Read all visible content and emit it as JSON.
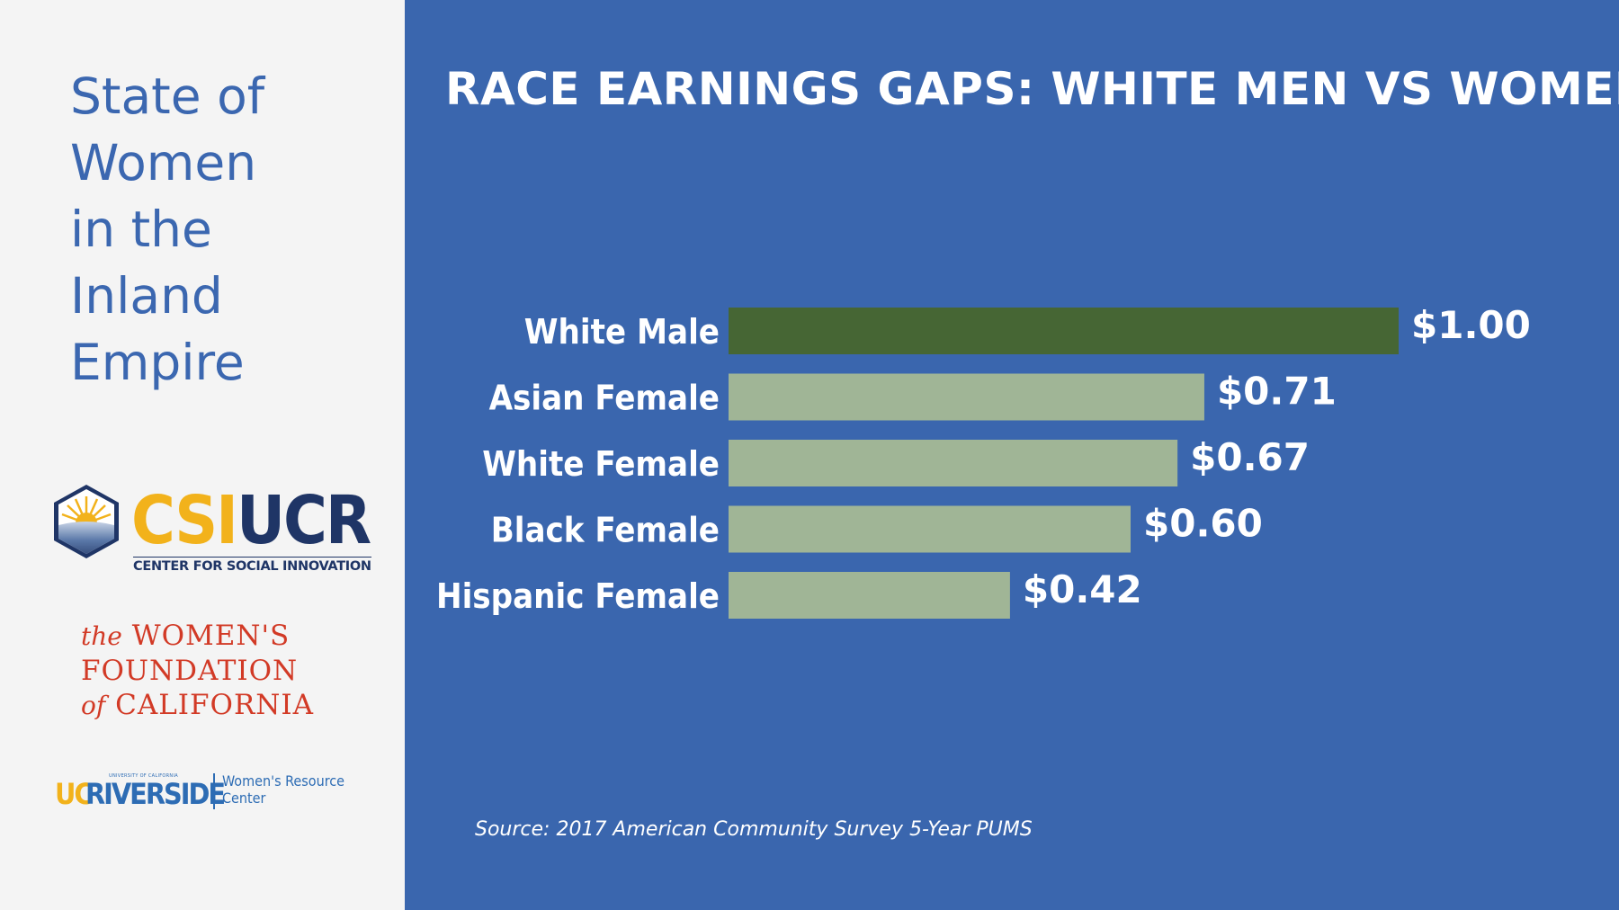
{
  "sidebar": {
    "title_lines": [
      "State of",
      "Women",
      "in the",
      "Inland",
      "Empire"
    ],
    "csi_logo": {
      "csi": "CSI",
      "ucr": "UCR",
      "subtitle": "CENTER FOR SOCIAL INNOVATION"
    },
    "wfc_logo": {
      "line1_the": "the",
      "line1": "WOMEN'S",
      "line2": "FOUNDATION",
      "line3_of": "of",
      "line3": "CALIFORNIA"
    },
    "ucr_logo": {
      "uc": "UC",
      "riverside": "RIVERSIDE",
      "tiny": "UNIVERSITY OF CALIFORNIA",
      "wrc_line1": "Women's Resource",
      "wrc_line2": "Center"
    }
  },
  "colors": {
    "background": "#3a66ae",
    "highlight_bar": "#466634",
    "bar": "#a0b596",
    "text": "#ffffff",
    "sidebar_title": "#3b67b0"
  },
  "chart_data": {
    "type": "bar",
    "orientation": "horizontal",
    "title": "RACE EARNINGS GAPS: WHITE MEN VS WOMEN",
    "categories": [
      "White Male",
      "Asian Female",
      "White Female",
      "Black Female",
      "Hispanic Female"
    ],
    "values": [
      1.0,
      0.71,
      0.67,
      0.6,
      0.42
    ],
    "value_labels": [
      "$1.00",
      "$0.71",
      "$0.67",
      "$0.60",
      "$0.42"
    ],
    "highlight": "White Male",
    "xlim": [
      0,
      1.0
    ],
    "grid": false,
    "source": "Source: 2017 American Community Survey 5-Year PUMS"
  }
}
